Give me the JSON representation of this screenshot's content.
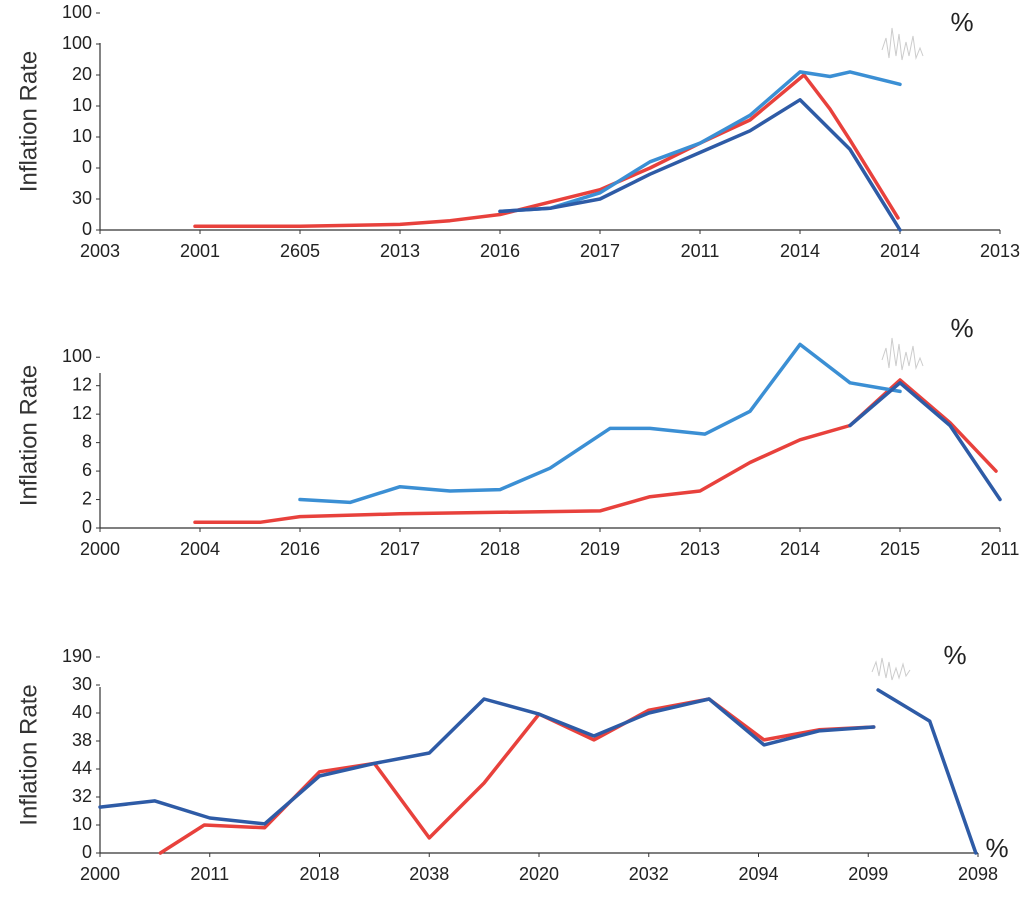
{
  "chart_data": [
    {
      "type": "line",
      "ylabel": "Inflation Rate",
      "annotations": [
        {
          "text": "%",
          "color": "#2a9d9a"
        }
      ],
      "xlim": [
        0,
        9
      ],
      "xticks": [
        {
          "value": 0,
          "label": "2003"
        },
        {
          "value": 1,
          "label": "2001"
        },
        {
          "value": 2,
          "label": "2605"
        },
        {
          "value": 3,
          "label": "2013"
        },
        {
          "value": 4,
          "label": "2016"
        },
        {
          "value": 5,
          "label": "2017"
        },
        {
          "value": 6,
          "label": "2011"
        },
        {
          "value": 7,
          "label": "2014"
        },
        {
          "value": 8,
          "label": "2014"
        },
        {
          "value": 9,
          "label": "2013"
        }
      ],
      "ylim": [
        0,
        7
      ],
      "yticks": [
        {
          "value": 0,
          "label": "0"
        },
        {
          "value": 1,
          "label": "30"
        },
        {
          "value": 2,
          "label": "0"
        },
        {
          "value": 3,
          "label": "10"
        },
        {
          "value": 4,
          "label": "10"
        },
        {
          "value": 5,
          "label": "20"
        },
        {
          "value": 6,
          "label": "100"
        },
        {
          "value": 7,
          "label": "100"
        }
      ],
      "series": [
        {
          "color": "#e8413c",
          "x": [
            0.95,
            2,
            3,
            3.5,
            4,
            4.5,
            5,
            5.5,
            6,
            6.5,
            7.04,
            7.3,
            7.5,
            7.98
          ],
          "values": [
            0.12,
            0.12,
            0.18,
            0.3,
            0.5,
            0.9,
            1.3,
            2,
            2.8,
            3.55,
            5,
            3.9,
            2.9,
            0.39
          ]
        },
        {
          "color": "#3b8fd4",
          "x": [
            4,
            4.5,
            5,
            5.5,
            6,
            6.5,
            7,
            7.3,
            7.5,
            8
          ],
          "values": [
            0.6,
            0.7,
            1.2,
            2.2,
            2.8,
            3.7,
            5.1,
            4.95,
            5.1,
            4.7
          ]
        },
        {
          "color": "#2e5ba6",
          "x": [
            4,
            4.5,
            5,
            5.5,
            6,
            6.5,
            7,
            7.5,
            8
          ],
          "values": [
            0.6,
            0.7,
            1.0,
            1.8,
            2.5,
            3.2,
            4.2,
            2.6,
            0
          ]
        }
      ]
    },
    {
      "type": "line",
      "ylabel": "Inflation Rate",
      "annotations": [
        {
          "text": "%",
          "color": "#2a9d9a"
        }
      ],
      "xlim": [
        0,
        9
      ],
      "xticks": [
        {
          "value": 0,
          "label": "2000"
        },
        {
          "value": 1,
          "label": "2004"
        },
        {
          "value": 2,
          "label": "2016"
        },
        {
          "value": 3,
          "label": "2017"
        },
        {
          "value": 4,
          "label": "2018"
        },
        {
          "value": 5,
          "label": "2019"
        },
        {
          "value": 6,
          "label": "2013"
        },
        {
          "value": 7,
          "label": "2014"
        },
        {
          "value": 8,
          "label": "2015"
        },
        {
          "value": 9,
          "label": "2011"
        }
      ],
      "ylim": [
        0,
        6.5
      ],
      "yticks": [
        {
          "value": 0,
          "label": "0"
        },
        {
          "value": 1,
          "label": "2"
        },
        {
          "value": 2,
          "label": "6"
        },
        {
          "value": 3,
          "label": "8"
        },
        {
          "value": 4,
          "label": "12"
        },
        {
          "value": 5,
          "label": "12"
        },
        {
          "value": 6,
          "label": "100"
        }
      ],
      "series": [
        {
          "color": "#e8413c",
          "x": [
            0.95,
            1.6,
            2,
            3,
            4,
            5,
            5.5,
            6,
            6.5,
            7,
            7.5,
            8,
            8.5,
            8.96
          ],
          "values": [
            0.2,
            0.2,
            0.4,
            0.5,
            0.55,
            0.6,
            1.1,
            1.3,
            2.3,
            3.1,
            3.6,
            5.2,
            3.7,
            2.0
          ]
        },
        {
          "color": "#3b8fd4",
          "x": [
            2,
            2.5,
            3,
            3.5,
            4,
            4.5,
            5.1,
            5.5,
            6.05,
            6.5,
            7,
            7.5,
            8
          ],
          "values": [
            1.0,
            0.9,
            1.45,
            1.3,
            1.35,
            2.1,
            3.5,
            3.5,
            3.3,
            4.1,
            6.45,
            5.1,
            4.8
          ]
        },
        {
          "color": "#2e5ba6",
          "x": [
            7.5,
            8,
            8.5,
            9
          ],
          "values": [
            3.6,
            5.1,
            3.6,
            1.0
          ]
        }
      ]
    },
    {
      "type": "line",
      "ylabel": "Inflation Rate",
      "annotations": [
        {
          "text": "%",
          "color": "#2a9d9a"
        },
        {
          "text": "%",
          "color": "#2e4a7a"
        }
      ],
      "xlim": [
        0,
        8
      ],
      "xticks": [
        {
          "value": 0,
          "label": "2000"
        },
        {
          "value": 1,
          "label": "2011"
        },
        {
          "value": 2,
          "label": "2018"
        },
        {
          "value": 3,
          "label": "2038"
        },
        {
          "value": 4,
          "label": "2020"
        },
        {
          "value": 5,
          "label": "2032"
        },
        {
          "value": 6,
          "label": "2094"
        },
        {
          "value": 7,
          "label": "2099"
        },
        {
          "value": 8,
          "label": "2098"
        }
      ],
      "ylim": [
        0,
        7
      ],
      "yticks": [
        {
          "value": 0,
          "label": "0"
        },
        {
          "value": 1,
          "label": "10"
        },
        {
          "value": 2,
          "label": "32"
        },
        {
          "value": 3,
          "label": "44"
        },
        {
          "value": 4,
          "label": "38"
        },
        {
          "value": 5,
          "label": "40"
        },
        {
          "value": 6,
          "label": "30"
        },
        {
          "value": 7,
          "label": "190"
        }
      ],
      "series": [
        {
          "color": "#e8413c",
          "x": [
            0.55,
            0.95,
            1.5,
            2,
            2.5,
            3,
            3.5,
            4,
            4.5,
            5,
            5.55,
            6.05,
            6.55,
            7.05
          ],
          "values": [
            0,
            1,
            0.9,
            2.9,
            3.2,
            0.54,
            2.5,
            4.96,
            4.04,
            5.1,
            5.5,
            4.04,
            4.4,
            4.5
          ]
        },
        {
          "color": "#2e5ba6",
          "x": [
            0,
            0.5,
            1,
            1.5,
            2,
            2.5,
            3,
            3.5,
            4,
            4.5,
            5,
            5.55,
            6.05,
            6.55,
            7.05,
            null,
            7.09,
            7.56,
            7.98
          ],
          "values": [
            1.64,
            1.86,
            1.25,
            1.04,
            2.75,
            3.2,
            3.57,
            5.5,
            4.96,
            4.18,
            5.0,
            5.5,
            3.86,
            4.36,
            4.5,
            null,
            5.82,
            4.71,
            0
          ]
        }
      ]
    }
  ]
}
